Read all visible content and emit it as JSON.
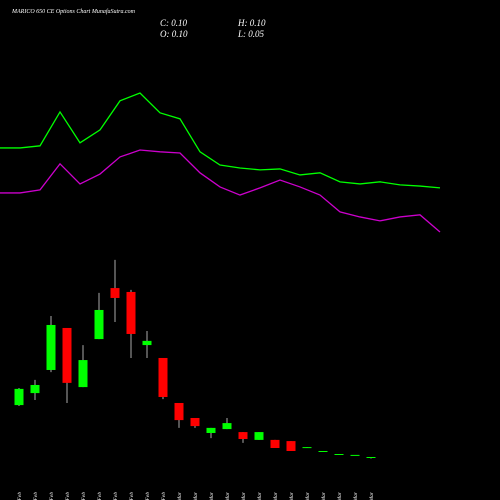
{
  "chart_data": {
    "type": "candlestick",
    "title": "MARICO 650  CE Options   Chart MunafaSutra.com",
    "header": {
      "close": "C: 0.10",
      "open": "O: 0.10",
      "high": "H: 0.10",
      "low": "L: 0.05"
    },
    "categories": [
      "16 Feb",
      "17 Feb",
      "18 Feb",
      "19 Feb",
      "20 Feb",
      "23 Feb",
      "24 Feb",
      "25 Feb",
      "26 Feb",
      "27 Feb",
      "02 Mar",
      "04 Mar",
      "05 Mar",
      "06 Mar",
      "09 Mar",
      "10 Mar",
      "11 Mar",
      "12 Mar",
      "13 Mar",
      "16 Mar",
      "17 Mar",
      "18 Mar",
      "19 Mar"
    ],
    "open": [
      1.83,
      2.23,
      3.0,
      4.4,
      2.43,
      4.03,
      5.73,
      5.6,
      3.83,
      3.4,
      1.9,
      1.4,
      0.9,
      1.03,
      0.93,
      0.67,
      0.67,
      0.63,
      0.4,
      0.27,
      0.2,
      0.17,
      0.1
    ],
    "high": [
      2.4,
      2.67,
      4.8,
      4.4,
      3.83,
      5.57,
      6.67,
      5.67,
      4.3,
      3.4,
      1.9,
      1.4,
      1.07,
      1.4,
      0.93,
      0.93,
      0.67,
      0.63,
      0.43,
      0.3,
      0.2,
      0.17,
      0.1
    ],
    "low": [
      1.8,
      2.0,
      2.93,
      1.9,
      2.43,
      4.03,
      4.6,
      3.4,
      3.4,
      2.03,
      1.07,
      1.07,
      0.73,
      1.03,
      0.57,
      0.67,
      0.4,
      0.3,
      0.4,
      0.27,
      0.2,
      0.17,
      0.05
    ],
    "close": [
      2.37,
      2.5,
      4.5,
      2.57,
      3.33,
      5.0,
      5.4,
      4.2,
      3.97,
      2.1,
      1.33,
      1.13,
      1.07,
      1.23,
      0.7,
      0.93,
      0.4,
      0.3,
      0.43,
      0.3,
      0.2,
      0.17,
      0.1
    ],
    "up_color": "#00ff00",
    "down_color": "#ff0000",
    "series": [
      {
        "color": "#00ff00",
        "values": [
          10.4,
          10.4,
          10.47,
          11.6,
          10.57,
          11.0,
          11.97,
          12.23,
          11.57,
          11.37,
          10.27,
          9.83,
          9.73,
          9.67,
          9.7,
          9.5,
          9.57,
          9.27,
          9.2,
          9.27,
          9.17,
          9.13,
          9.07
        ]
      },
      {
        "color": "#cc00cc",
        "values": [
          8.9,
          8.9,
          9.0,
          9.87,
          9.2,
          9.53,
          10.1,
          10.33,
          10.27,
          10.23,
          9.57,
          9.1,
          8.83,
          9.07,
          9.33,
          9.1,
          8.83,
          8.27,
          8.1,
          7.97,
          8.1,
          8.17,
          7.6
        ]
      }
    ],
    "ylim": [
      0,
      15.33
    ]
  }
}
